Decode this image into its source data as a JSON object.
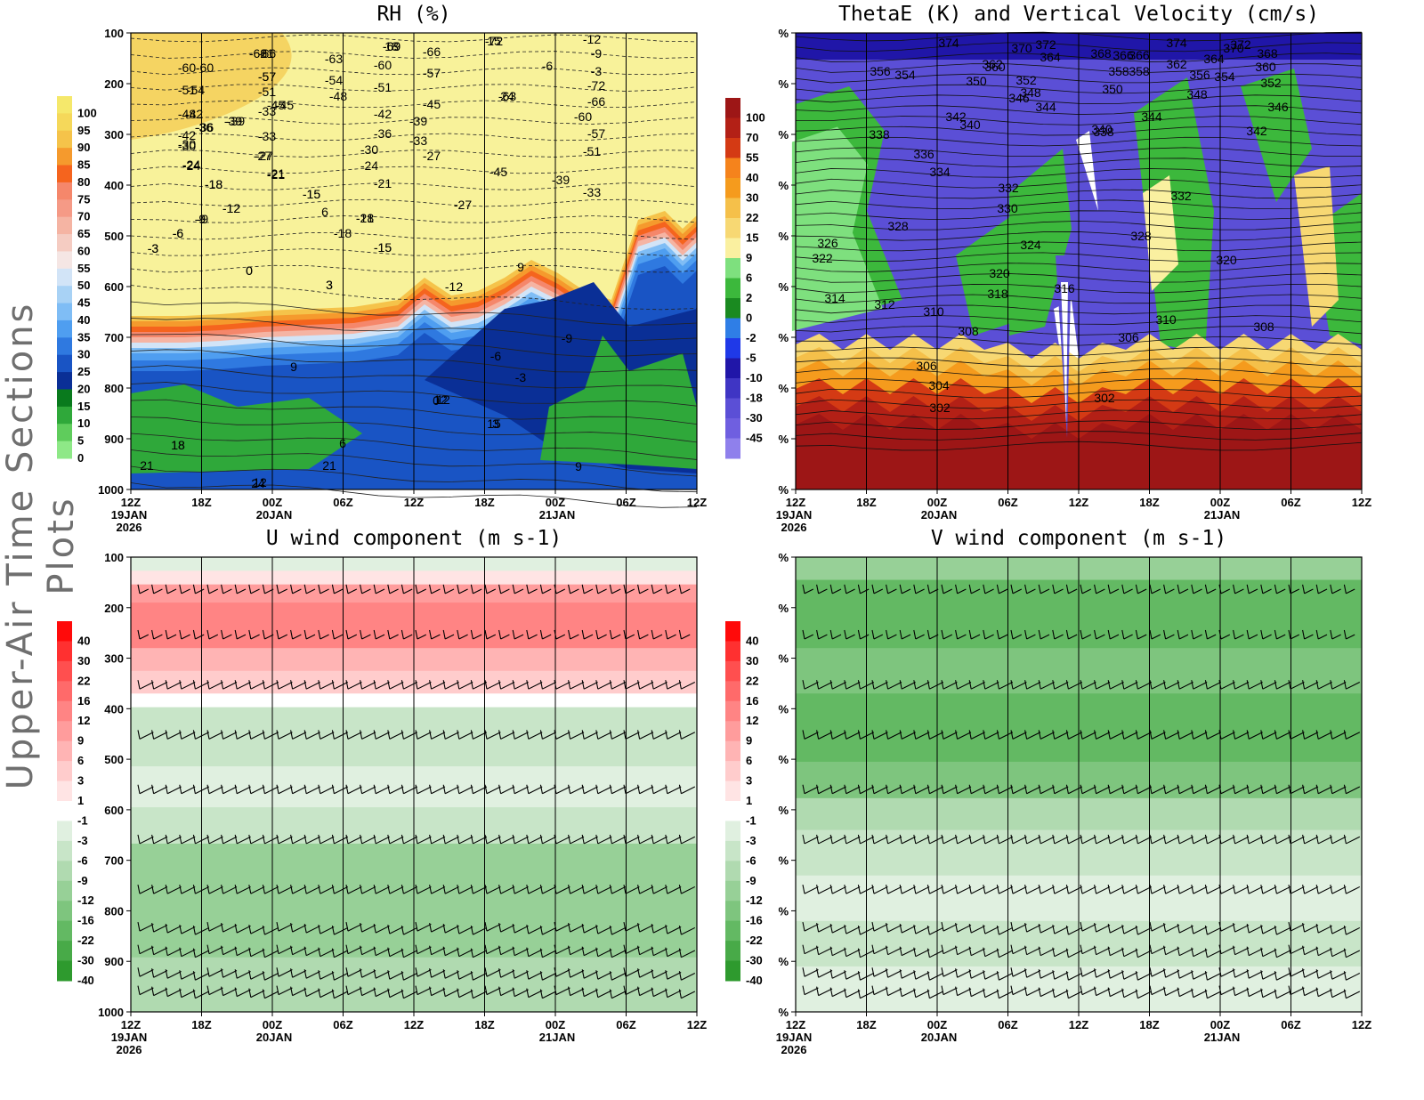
{
  "page_title": "Upper-Air Time Sections Plots",
  "colors": {
    "rh_scale": [
      "#f2f2f2",
      "#fafabc",
      "#f7f78f",
      "#f5e86b",
      "#f5d85a",
      "#f5c34a",
      "#f59a2d",
      "#f5641e",
      "#f5876b",
      "#f59a86",
      "#f5b4a3",
      "#f5ccc2",
      "#f5e6e4",
      "#d2e4f7",
      "#a8d2f5",
      "#7fbdf5",
      "#4f9ef0",
      "#2f79e0",
      "#1954c4",
      "#0a2f96",
      "#097a1d",
      "#2fa83a",
      "#5fcc5c",
      "#8ee887"
    ],
    "thetae_scale": [
      "#f2f2f2",
      "#8f80ec",
      "#6f5fe0",
      "#5b4fd6",
      "#3f35c4",
      "#2016a8",
      "#1f39e8",
      "#2f7ee6",
      "#1a8a20",
      "#3cb83c",
      "#7ee07e",
      "#faf0a0",
      "#f7d873",
      "#f5c04a",
      "#f59b1d",
      "#f5831c",
      "#d43a14",
      "#b32016",
      "#9d1616"
    ],
    "u_scale": [
      "#1f8f1f",
      "#2e9a2e",
      "#48aa48",
      "#63b963",
      "#7ec57e",
      "#97d097",
      "#b0dab0",
      "#c8e5c8",
      "#e0f0e0",
      "#ffffff",
      "#ffe4e4",
      "#ffcccc",
      "#ffb4b4",
      "#ff9c9c",
      "#ff8484",
      "#ff6a6a",
      "#ff4f4f",
      "#ff3030",
      "#ff0a0a"
    ]
  },
  "chart_data": [
    {
      "id": "rh",
      "type": "heatmap",
      "title": "RH (%)",
      "xlabel": "",
      "ylabel": "",
      "x_ticks": [
        "12Z",
        "18Z",
        "00Z",
        "06Z",
        "12Z",
        "18Z",
        "00Z",
        "06Z",
        "12Z"
      ],
      "x_date_labels": [
        [
          "19JAN",
          "2026"
        ],
        [],
        [
          "20JAN"
        ],
        [],
        [],
        [],
        [
          "21JAN"
        ],
        [],
        []
      ],
      "y_ticks": [
        "100",
        "200",
        "300",
        "400",
        "500",
        "600",
        "700",
        "800",
        "900",
        "1000"
      ],
      "colorbar": [
        "100",
        "95",
        "90",
        "85",
        "80",
        "75",
        "70",
        "65",
        "60",
        "55",
        "50",
        "45",
        "40",
        "35",
        "30",
        "25",
        "20",
        "15",
        "10",
        "5",
        "0"
      ],
      "contour_labels": [
        "-72",
        "-69",
        "-66",
        "-63",
        "-60",
        "-57",
        "-54",
        "-51",
        "-48",
        "-45",
        "-42",
        "-39",
        "-36",
        "-33",
        "-30",
        "-27",
        "-24",
        "-21",
        "-18",
        "-15",
        "-12",
        "-9",
        "-6",
        "-3",
        "0",
        "3",
        "6",
        "9",
        "12",
        "15",
        "18",
        "21",
        "24",
        "-66",
        "-60",
        "-57",
        "-51",
        "-45",
        "-42",
        "-39",
        "-36",
        "-33",
        "-30",
        "-27",
        "-24",
        "-21",
        "-18",
        "-15",
        "-12",
        "-9",
        "-6",
        "-3",
        "0",
        "3",
        "9",
        "12",
        "18",
        "21",
        "-69",
        "-66",
        "-63",
        "-60",
        "-57",
        "-54",
        "-51",
        "-48",
        "-45",
        "-42",
        "-39",
        "-36",
        "-33",
        "-30",
        "-27",
        "-24",
        "-21",
        "-18",
        "-15",
        "-12",
        "-9",
        "-6",
        "-3",
        "-72",
        "-66",
        "-60",
        "-57",
        "-51",
        "-45",
        "-39",
        "-33",
        "-27",
        "-21",
        "-18",
        "-15",
        "-12",
        "-9",
        "-6",
        "-3",
        "0",
        "3",
        "6",
        "9",
        "12",
        "15",
        "18",
        "21",
        "24"
      ]
    },
    {
      "id": "thetae",
      "type": "heatmap",
      "title": "ThetaE (K) and Vertical Velocity (cm/s)",
      "x_ticks": [
        "12Z",
        "18Z",
        "00Z",
        "06Z",
        "12Z",
        "18Z",
        "00Z",
        "06Z",
        "12Z"
      ],
      "x_date_labels": [
        [
          "19JAN",
          "2026"
        ],
        [],
        [
          "20JAN"
        ],
        [],
        [],
        [],
        [
          "21JAN"
        ],
        [],
        []
      ],
      "y_ticks": [
        "%",
        "%",
        "%",
        "%",
        "%",
        "%",
        "%",
        "%",
        "%",
        "%"
      ],
      "colorbar": [
        "100",
        "70",
        "55",
        "40",
        "30",
        "22",
        "15",
        "9",
        "6",
        "2",
        "0",
        "-2",
        "-5",
        "-10",
        "-18",
        "-30",
        "-45"
      ],
      "contour_labels": [
        "374",
        "372",
        "370",
        "368",
        "366",
        "364",
        "362",
        "360",
        "358",
        "356",
        "354",
        "352",
        "350",
        "348",
        "346",
        "344",
        "342",
        "340",
        "338",
        "336",
        "334",
        "332",
        "330",
        "328",
        "326",
        "324",
        "322",
        "320",
        "318",
        "316",
        "314",
        "312",
        "310",
        "308",
        "306",
        "304",
        "302",
        "374",
        "372",
        "370",
        "368",
        "366",
        "364",
        "362",
        "360",
        "358",
        "356",
        "354",
        "352",
        "350",
        "348",
        "346",
        "344",
        "342",
        "340",
        "338",
        "332",
        "328",
        "320",
        "310",
        "308",
        "306",
        "302"
      ]
    },
    {
      "id": "u",
      "type": "heatmap",
      "title": "U wind component (m s-1)",
      "x_ticks": [
        "12Z",
        "18Z",
        "00Z",
        "06Z",
        "12Z",
        "18Z",
        "00Z",
        "06Z",
        "12Z"
      ],
      "x_date_labels": [
        [
          "19JAN",
          "2026"
        ],
        [],
        [
          "20JAN"
        ],
        [],
        [],
        [],
        [
          "21JAN"
        ],
        [],
        []
      ],
      "y_ticks": [
        "100",
        "200",
        "300",
        "400",
        "500",
        "600",
        "700",
        "800",
        "900",
        "1000"
      ],
      "colorbar": [
        "40",
        "30",
        "22",
        "16",
        "12",
        "9",
        "6",
        "3",
        "1",
        "-1",
        "-3",
        "-6",
        "-9",
        "-12",
        "-16",
        "-22",
        "-30",
        "-40"
      ]
    },
    {
      "id": "v",
      "type": "heatmap",
      "title": "V wind component (m s-1)",
      "x_ticks": [
        "12Z",
        "18Z",
        "00Z",
        "06Z",
        "12Z",
        "18Z",
        "00Z",
        "06Z",
        "12Z"
      ],
      "x_date_labels": [
        [
          "19JAN",
          "2026"
        ],
        [],
        [
          "20JAN"
        ],
        [],
        [],
        [],
        [
          "21JAN"
        ],
        [],
        []
      ],
      "y_ticks": [
        "%",
        "%",
        "%",
        "%",
        "%",
        "%",
        "%",
        "%",
        "%",
        "%"
      ],
      "colorbar": [
        "40",
        "30",
        "22",
        "16",
        "12",
        "9",
        "6",
        "3",
        "1",
        "-1",
        "-3",
        "-6",
        "-9",
        "-12",
        "-16",
        "-22",
        "-30",
        "-40"
      ]
    }
  ]
}
